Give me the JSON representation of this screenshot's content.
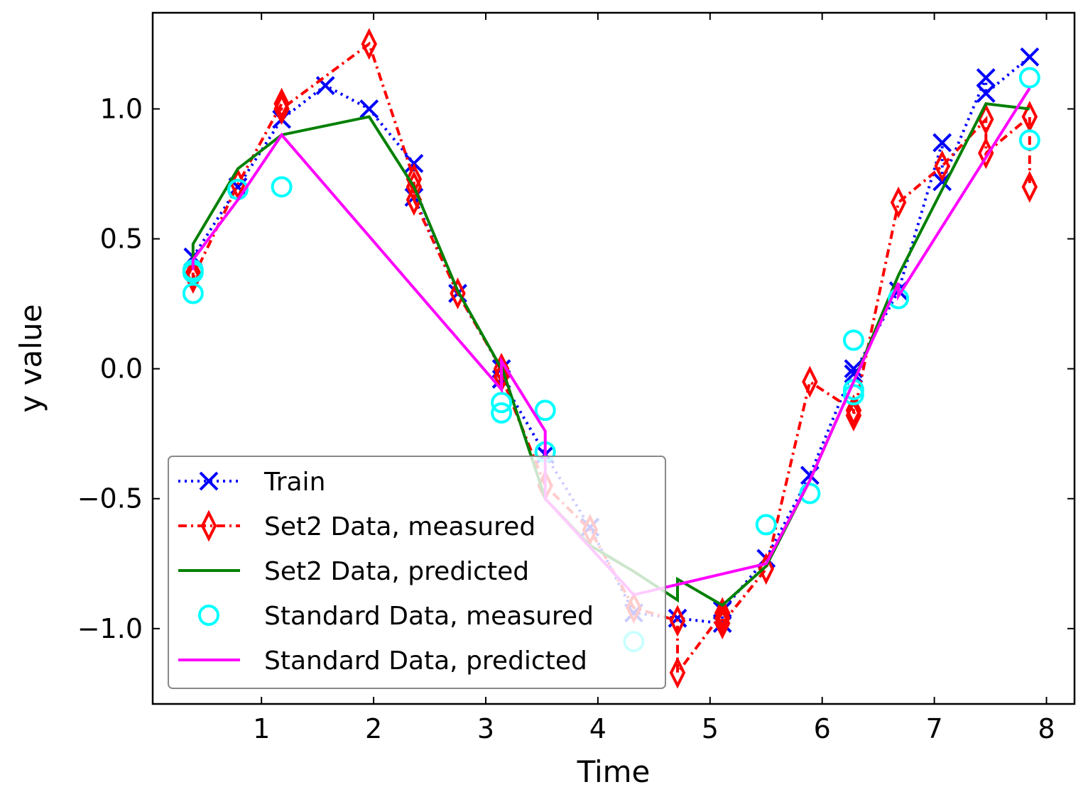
{
  "chart_data": {
    "type": "line",
    "title": "",
    "xlabel": "Time",
    "ylabel": "y value",
    "xlim": [
      0.03,
      8.25
    ],
    "ylim": [
      -1.29,
      1.37
    ],
    "xticks": [
      1,
      2,
      3,
      4,
      5,
      6,
      7,
      8
    ],
    "xtick_labels": [
      "1",
      "2",
      "3",
      "4",
      "5",
      "6",
      "7",
      "8"
    ],
    "yticks": [
      -1.0,
      -0.5,
      0.0,
      0.5,
      1.0
    ],
    "ytick_labels": [
      "−1.0",
      "−0.5",
      "0.0",
      "0.5",
      "1.0"
    ],
    "grid": false,
    "legend_position": "lower-left",
    "series": [
      {
        "name": "Train",
        "color": "#0000ff",
        "line_style": "dotted",
        "marker": "x",
        "x": [
          0.39,
          0.79,
          1.18,
          1.57,
          1.96,
          2.36,
          2.36,
          2.75,
          3.14,
          3.14,
          3.53,
          3.93,
          4.32,
          4.71,
          5.11,
          5.11,
          5.5,
          5.89,
          6.28,
          6.28,
          6.68,
          7.07,
          7.07,
          7.46,
          7.46,
          7.85
        ],
        "y": [
          0.43,
          0.7,
          0.96,
          1.09,
          1.0,
          0.79,
          0.66,
          0.29,
          0.0,
          -0.04,
          -0.33,
          -0.61,
          -0.94,
          -0.96,
          -0.98,
          -0.93,
          -0.73,
          -0.41,
          0.0,
          -0.02,
          0.3,
          0.87,
          0.72,
          1.12,
          1.06,
          1.2
        ]
      },
      {
        "name": "Set2 Data, measured",
        "color": "#ff0000",
        "line_style": "dashdot",
        "marker": "thin_diamond",
        "x": [
          0.39,
          0.39,
          0.79,
          1.18,
          1.18,
          1.96,
          2.36,
          2.36,
          2.36,
          2.75,
          3.14,
          3.14,
          3.53,
          3.93,
          4.32,
          4.71,
          4.71,
          5.11,
          5.11,
          5.11,
          5.5,
          5.89,
          6.28,
          6.28,
          6.68,
          7.07,
          7.46,
          7.46,
          7.85,
          7.85
        ],
        "y": [
          0.37,
          0.35,
          0.71,
          1.02,
          1.0,
          1.25,
          0.73,
          0.7,
          0.65,
          0.29,
          0.0,
          -0.03,
          -0.45,
          -0.62,
          -0.92,
          -0.97,
          -1.17,
          -0.94,
          -0.96,
          -0.98,
          -0.77,
          -0.05,
          -0.16,
          -0.18,
          0.64,
          0.78,
          0.96,
          0.83,
          0.97,
          0.7
        ]
      },
      {
        "name": "Set2 Data, predicted",
        "color": "#008000",
        "line_style": "solid",
        "marker": "none",
        "x": [
          0.39,
          0.39,
          0.79,
          1.18,
          1.96,
          2.36,
          2.75,
          3.14,
          3.14,
          3.53,
          3.93,
          4.32,
          4.71,
          4.71,
          5.11,
          5.5,
          5.89,
          6.28,
          6.68,
          7.07,
          7.46,
          7.85
        ],
        "y": [
          0.38,
          0.48,
          0.77,
          0.9,
          0.97,
          0.7,
          0.3,
          0.0,
          0.01,
          -0.5,
          -0.68,
          -0.78,
          -0.89,
          -0.81,
          -0.91,
          -0.76,
          -0.43,
          -0.05,
          0.36,
          0.69,
          1.02,
          1.0
        ]
      },
      {
        "name": "Standard Data, measured",
        "color": "#00ffff",
        "line_style": "none",
        "marker": "o",
        "x": [
          0.39,
          0.39,
          0.39,
          0.79,
          1.18,
          3.14,
          3.14,
          3.53,
          3.53,
          4.32,
          5.5,
          5.89,
          6.28,
          6.28,
          6.28,
          6.68,
          7.85,
          7.85
        ],
        "y": [
          0.38,
          0.37,
          0.29,
          0.69,
          0.7,
          -0.13,
          -0.17,
          -0.16,
          -0.32,
          -1.05,
          -0.6,
          -0.48,
          0.11,
          -0.08,
          -0.1,
          0.27,
          1.12,
          0.88
        ]
      },
      {
        "name": "Standard Data, predicted",
        "color": "#ff00ff",
        "line_style": "solid",
        "marker": "none",
        "x": [
          0.39,
          0.39,
          0.79,
          1.18,
          3.14,
          3.14,
          3.53,
          3.53,
          4.32,
          5.5,
          5.89,
          6.28,
          6.68,
          6.68,
          7.85
        ],
        "y": [
          0.38,
          0.42,
          0.65,
          0.9,
          -0.08,
          0.03,
          -0.24,
          -0.5,
          -0.87,
          -0.75,
          -0.43,
          -0.05,
          0.33,
          0.28,
          1.08
        ]
      }
    ]
  }
}
